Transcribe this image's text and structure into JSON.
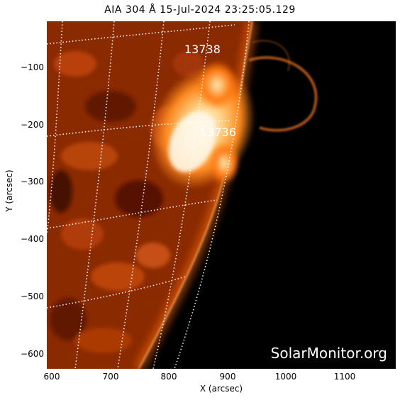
{
  "title": "AIA 304 Å 15-Jul-2024 23:25:05.129",
  "axes": {
    "xlabel": "X (arcsec)",
    "ylabel": "Y (arcsec)",
    "xticks": [
      "600",
      "700",
      "800",
      "900",
      "1000",
      "1100"
    ],
    "yticks": [
      "−100",
      "−200",
      "−300",
      "−400",
      "−500",
      "−600"
    ]
  },
  "regions": [
    {
      "label": "13738"
    },
    {
      "label": "13736"
    }
  ],
  "watermark": "SolarMonitor.org",
  "colors": {
    "background": "#000000",
    "limb_glow": "#ff7a1a",
    "active_region": "#fff3cf",
    "grid": "#ffffff"
  }
}
